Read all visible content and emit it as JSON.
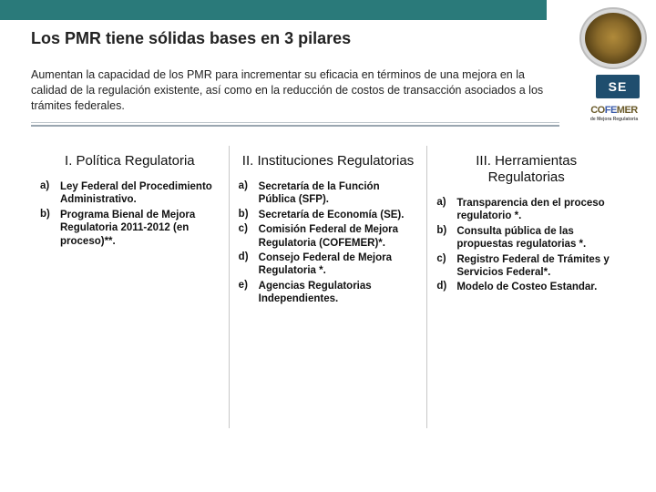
{
  "header": {
    "title": "Los PMR tiene sólidas bases en 3 pilares",
    "subtitle": "Aumentan la capacidad de los PMR para incrementar su eficacia en términos de una mejora en la calidad de la regulación existente, así como en la reducción de costos de transacción asociados a los trámites federales."
  },
  "badges": {
    "se": "SE",
    "cofemer_main": "CO",
    "cofemer_blue": "FE",
    "cofemer_end": "MER",
    "cofemer_sub": "de Mejora Regulatoria"
  },
  "columns": [
    {
      "title": "I. Política Regulatoria",
      "items": [
        {
          "letter": "a)",
          "text": "Ley Federal del Procedimiento Administrativo."
        },
        {
          "letter": "b)",
          "text": "Programa Bienal de Mejora Regulatoria 2011-2012 (en proceso)**."
        }
      ]
    },
    {
      "title": "II. Instituciones Regulatorias",
      "items": [
        {
          "letter": "a)",
          "text": "Secretaría de la Función Pública (SFP)."
        },
        {
          "letter": "b)",
          "text": "Secretaría de Economía (SE)."
        },
        {
          "letter": "c)",
          "text": "Comisión Federal de Mejora Regulatoria (COFEMER)*."
        },
        {
          "letter": "d)",
          "text": "Consejo Federal de Mejora Regulatoria *."
        },
        {
          "letter": "e)",
          "text": "Agencias Regulatorias Independientes."
        }
      ]
    },
    {
      "title": "III. Herramientas Regulatorias",
      "items": [
        {
          "letter": "a)",
          "text": "Transparencia den el proceso regulatorio *."
        },
        {
          "letter": "b)",
          "text": "Consulta pública de las propuestas regulatorias *."
        },
        {
          "letter": "c)",
          "text": "Registro Federal de Trámites y Servicios Federal*."
        },
        {
          "letter": "d)",
          "text": "Modelo de Costeo Estandar."
        }
      ]
    }
  ],
  "styling": {
    "page_bg": "#ffffff",
    "teal_strip": "#2a7a7a",
    "title_color": "#222222",
    "title_fontsize": 18,
    "subtitle_fontsize": 12.5,
    "col_title_fontsize": 15,
    "item_fontsize": 11.5,
    "divider_color": "#c8c8c8",
    "hr_color_light": "#bfc6cc",
    "hr_color_dark": "#9aa6b0",
    "se_bg": "#1f4e6e"
  }
}
